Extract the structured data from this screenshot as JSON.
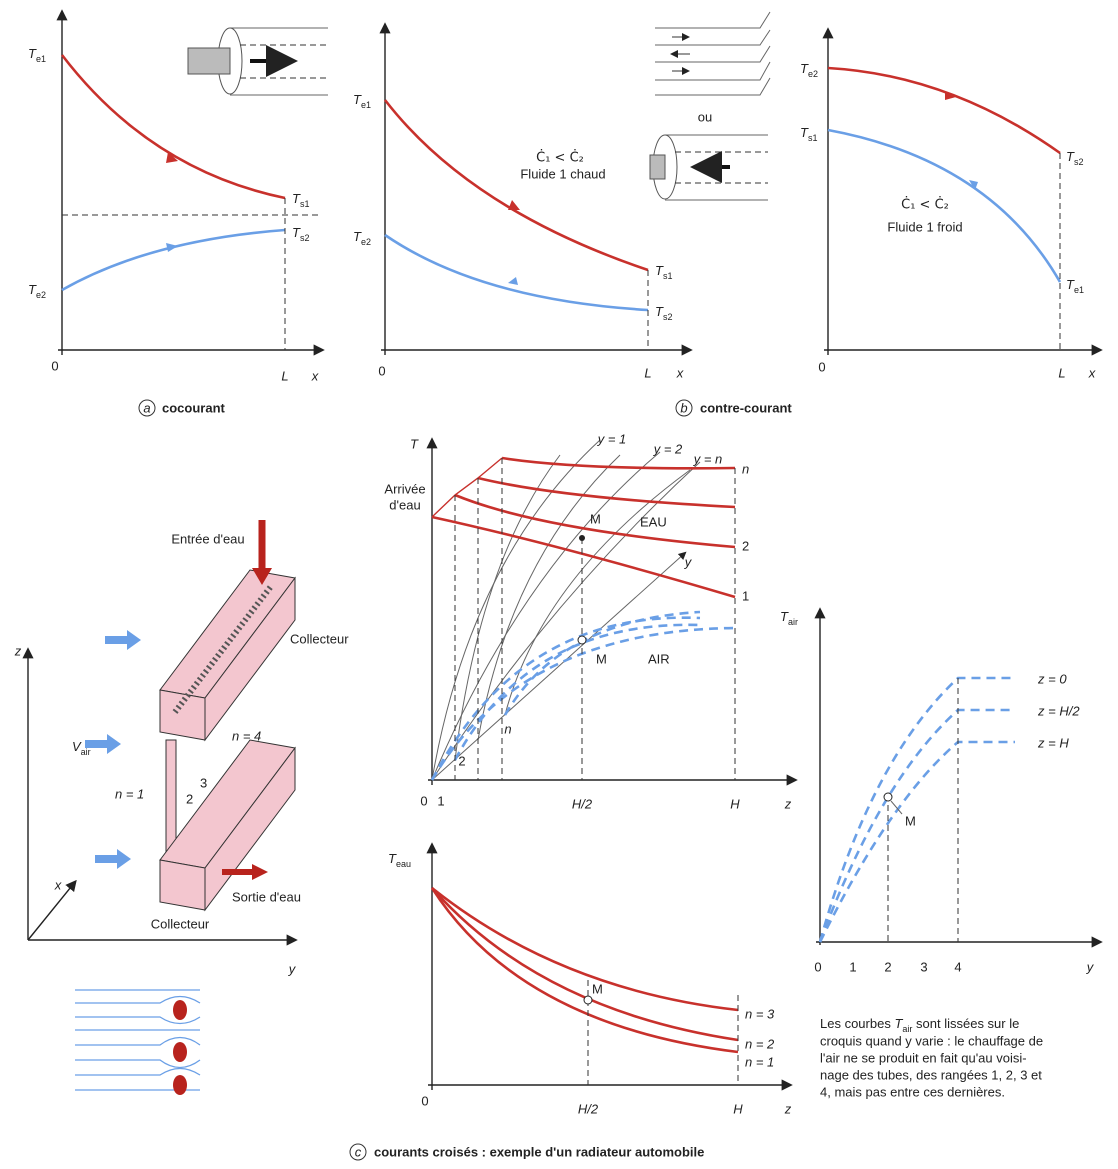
{
  "panel_a": {
    "te1": {
      "t": "T",
      "s": "e1"
    },
    "ts1": {
      "t": "T",
      "s": "s1"
    },
    "ts2": {
      "t": "T",
      "s": "s2"
    },
    "te2": {
      "t": "T",
      "s": "e2"
    },
    "origin": "0",
    "length": "L",
    "axis": "x",
    "letter": "a",
    "caption": "cocourant"
  },
  "panel_b": {
    "te1": {
      "t": "T",
      "s": "e1"
    },
    "te2": {
      "t": "T",
      "s": "e2"
    },
    "ts1": {
      "t": "T",
      "s": "s1"
    },
    "ts2": {
      "t": "T",
      "s": "s2"
    },
    "origin": "0",
    "length": "L",
    "axis": "x",
    "relation": "Ċ₁ < Ċ₂",
    "fluid": "Fluide 1 chaud",
    "or": "ou",
    "letter": "b",
    "caption": "contre-courant"
  },
  "panel_b2": {
    "te2": {
      "t": "T",
      "s": "e2"
    },
    "ts1": {
      "t": "T",
      "s": "s1"
    },
    "ts2": {
      "t": "T",
      "s": "s2"
    },
    "te1": {
      "t": "T",
      "s": "e1"
    },
    "origin": "0",
    "length": "L",
    "axis": "x",
    "relation": "Ċ₁ < Ċ₂",
    "fluid": "Fluide 1 froid"
  },
  "radiator": {
    "water_in": "Entrée d'eau",
    "collector_top": "Collecteur",
    "collector_bottom": "Collecteur",
    "water_out": "Sortie d'eau",
    "v_air": {
      "t": "V",
      "s": "air"
    },
    "row1": "n = 1",
    "row2": "2",
    "row3": "3",
    "row4": "n = 4",
    "axis_z": "z",
    "axis_x": "x",
    "axis_y": "y"
  },
  "profile": {
    "axis": "T",
    "inlet": [
      "Arrivée",
      "d'eau"
    ],
    "y1": "y = 1",
    "y2": "y = 2",
    "yn": "y = n",
    "curve_n": "n",
    "curve_2": "2",
    "curve_1": "1",
    "m_water": "M",
    "water": "EAU",
    "y_dir": "y",
    "m_air": "M",
    "air": "AIR",
    "air_n": "n",
    "air_2": "2",
    "origin": "0",
    "tick1": "1",
    "half": "H/2",
    "full": "H",
    "axis_z": "z"
  },
  "water_temp": {
    "axis": {
      "t": "T",
      "s": "eau"
    },
    "m": "M",
    "n3": "n = 3",
    "n2": "n = 2",
    "n1": "n = 1",
    "origin": "0",
    "half": "H/2",
    "full": "H",
    "axis_z": "z"
  },
  "air_temp": {
    "axis": {
      "t": "T",
      "s": "air"
    },
    "z0": "z = 0",
    "zh2": "z = H/2",
    "zh": "z = H",
    "m": "M",
    "ticks": [
      "0",
      "1",
      "2",
      "3",
      "4"
    ],
    "axis_y": "y",
    "note": [
      [
        "Les courbes ",
        {
          "t": "T",
          "s": "air"
        },
        " sont lissées sur le"
      ],
      "croquis quand y varie : le chauffage de",
      "l'air ne se produit en fait qu'au voisi-",
      "nage des tubes, des rangées 1, 2, 3 et",
      "4, mais pas entre ces dernières."
    ]
  },
  "caption": {
    "letter": "c",
    "text": "courants croisés : exemple d'un radiateur automobile"
  }
}
